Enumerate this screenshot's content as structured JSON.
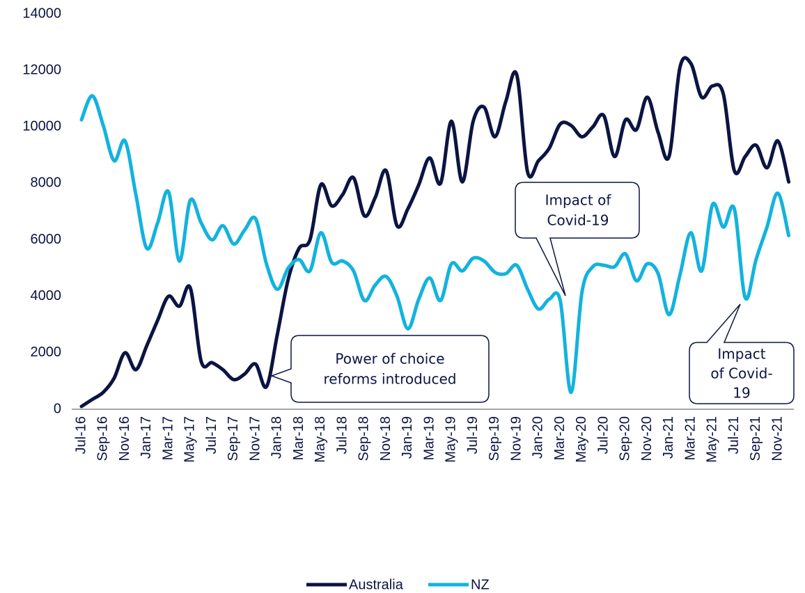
{
  "chart_data": {
    "type": "line",
    "categories": [
      "Jul-16",
      null,
      "Sep-16",
      null,
      "Nov-16",
      null,
      "Jan-17",
      null,
      "Mar-17",
      null,
      "May-17",
      null,
      "Jul-17",
      null,
      "Sep-17",
      null,
      "Nov-17",
      null,
      "Jan-18",
      null,
      "Mar-18",
      null,
      "May-18",
      null,
      "Jul-18",
      null,
      "Sep-18",
      null,
      "Nov-18",
      null,
      "Jan-19",
      null,
      "Mar-19",
      null,
      "May-19",
      null,
      "Jul-19",
      null,
      "Sep-19",
      null,
      "Nov-19",
      null,
      "Jan-20",
      null,
      "Mar-20",
      null,
      "May-20",
      null,
      "Jul-20",
      null,
      "Sep-20",
      null,
      "Nov-20",
      null,
      "Jan-21",
      null,
      "Mar-21",
      null,
      "May-21",
      null,
      "Jul-21",
      null,
      "Sep-21",
      null,
      "Nov-21",
      null
    ],
    "series": [
      {
        "name": "Australia",
        "color": "#0b1442",
        "values": [
          100,
          350,
          600,
          1100,
          2000,
          1400,
          2250,
          3150,
          4000,
          3650,
          4300,
          1700,
          1650,
          1400,
          1050,
          1250,
          1600,
          800,
          2650,
          4600,
          5700,
          6000,
          7950,
          7200,
          7600,
          8200,
          6850,
          7500,
          8450,
          6500,
          7100,
          7950,
          8900,
          8000,
          10200,
          8050,
          10200,
          10700,
          9650,
          10900,
          11850,
          8400,
          8800,
          9250,
          10100,
          10050,
          9650,
          10000,
          10400,
          8950,
          10250,
          9900,
          11050,
          9800,
          8950,
          12100,
          12250,
          11050,
          11450,
          11150,
          8450,
          8950,
          9350,
          8550,
          9500,
          8050
        ]
      },
      {
        "name": "NZ",
        "color": "#12b3de",
        "values": [
          10250,
          11100,
          10050,
          8800,
          9500,
          7600,
          5700,
          6600,
          7700,
          5250,
          7400,
          6600,
          6000,
          6500,
          5850,
          6350,
          6750,
          5150,
          4250,
          5000,
          5300,
          4900,
          6250,
          5200,
          5250,
          4900,
          3850,
          4400,
          4700,
          4000,
          2850,
          3900,
          4650,
          3850,
          5150,
          4900,
          5350,
          5250,
          4850,
          4800,
          5100,
          4250,
          3550,
          3900,
          3850,
          600,
          4150,
          5050,
          5100,
          5050,
          5500,
          4550,
          5150,
          4800,
          3350,
          4750,
          6250,
          4900,
          7250,
          6450,
          7100,
          3950,
          5300,
          6450,
          7650,
          6150
        ]
      }
    ],
    "ylim": [
      0,
      14000
    ],
    "yticks": [
      0,
      2000,
      4000,
      6000,
      8000,
      10000,
      12000,
      14000
    ],
    "grid": false,
    "legend": "bottom",
    "annotations": [
      {
        "lines": [
          "Power of choice",
          "reforms introduced"
        ]
      },
      {
        "lines": [
          "Impact of",
          "Covid-19"
        ]
      },
      {
        "lines": [
          "Impact",
          "of Covid-",
          "19"
        ]
      }
    ]
  }
}
